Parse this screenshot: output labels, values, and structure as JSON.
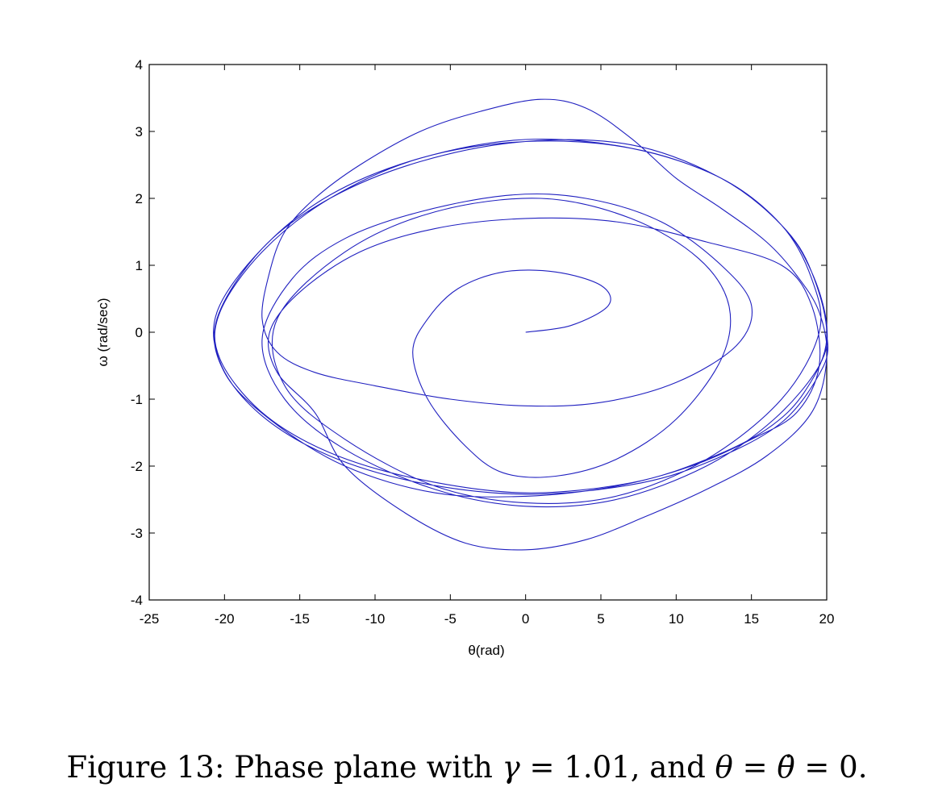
{
  "chart_data": {
    "type": "line",
    "title": "",
    "xlabel": "θ(rad)",
    "ylabel": "ω (rad/sec)",
    "xlim": [
      -25,
      20
    ],
    "ylim": [
      -4,
      4
    ],
    "xticks": [
      -25,
      -20,
      -15,
      -10,
      -5,
      0,
      5,
      10,
      15,
      20
    ],
    "yticks": [
      -4,
      -3,
      -2,
      -1,
      0,
      1,
      2,
      3,
      4
    ],
    "xtick_labels": [
      "-25",
      "-20",
      "-15",
      "-10",
      "-5",
      "0",
      "5",
      "10",
      "15",
      "20"
    ],
    "ytick_labels": [
      "-4",
      "-3",
      "-2",
      "-1",
      "0",
      "1",
      "2",
      "3",
      "4"
    ],
    "grid": false,
    "line_color": "#2020c0",
    "series": [
      {
        "points": [
          [
            0,
            0
          ],
          [
            3,
            0.1
          ],
          [
            5.5,
            0.4
          ],
          [
            5,
            0.7
          ],
          [
            2,
            0.9
          ],
          [
            -1.5,
            0.9
          ],
          [
            -4.5,
            0.65
          ],
          [
            -6.5,
            0.2
          ],
          [
            -7.5,
            -0.3
          ],
          [
            -6.5,
            -1.0
          ],
          [
            -4,
            -1.7
          ],
          [
            -1.5,
            -2.1
          ],
          [
            2,
            -2.15
          ],
          [
            6,
            -1.9
          ],
          [
            10,
            -1.3
          ],
          [
            13,
            -0.4
          ],
          [
            13.5,
            0.4
          ],
          [
            11.5,
            1.1
          ],
          [
            7,
            1.7
          ],
          [
            1,
            2.0
          ],
          [
            -6,
            1.8
          ],
          [
            -12,
            1.2
          ],
          [
            -16.5,
            0.2
          ],
          [
            -16,
            -0.8
          ],
          [
            -12,
            -1.6
          ],
          [
            -6,
            -2.3
          ],
          [
            0,
            -2.55
          ],
          [
            6,
            -2.45
          ],
          [
            12,
            -1.9
          ],
          [
            17,
            -1.0
          ],
          [
            19.5,
            0
          ],
          [
            19,
            0.8
          ],
          [
            17,
            1.6
          ],
          [
            13,
            2.3
          ],
          [
            7,
            2.75
          ],
          [
            0,
            2.85
          ],
          [
            -7,
            2.6
          ],
          [
            -13,
            2.0
          ],
          [
            -17.5,
            1.2
          ],
          [
            -20.3,
            0.3
          ],
          [
            -20.3,
            -0.4
          ],
          [
            -17.5,
            -1.2
          ],
          [
            -13,
            -1.8
          ],
          [
            -7,
            -2.2
          ],
          [
            0,
            -2.4
          ],
          [
            7,
            -2.25
          ],
          [
            12,
            -1.9
          ],
          [
            16,
            -1.45
          ],
          [
            18.5,
            -0.9
          ],
          [
            20,
            -0.1
          ],
          [
            19,
            0.9
          ],
          [
            17,
            1.6
          ],
          [
            13,
            2.3
          ],
          [
            7,
            2.8
          ],
          [
            0,
            2.85
          ],
          [
            -7,
            2.55
          ],
          [
            -13,
            2.0
          ],
          [
            -17.5,
            1.25
          ],
          [
            -20.5,
            0.2
          ],
          [
            -20,
            -0.6
          ],
          [
            -17,
            -1.3
          ],
          [
            -12,
            -2.0
          ],
          [
            -6,
            -2.4
          ],
          [
            0,
            -2.45
          ],
          [
            6,
            -2.3
          ],
          [
            11,
            -2.0
          ],
          [
            15,
            -1.6
          ],
          [
            18,
            -1.2
          ],
          [
            19.5,
            -0.5
          ],
          [
            19,
            0.4
          ],
          [
            17,
            1.0
          ],
          [
            12,
            1.35
          ],
          [
            6,
            1.65
          ],
          [
            0,
            1.7
          ],
          [
            -6,
            1.55
          ],
          [
            -11,
            1.2
          ],
          [
            -15,
            0.6
          ],
          [
            -17,
            0.0
          ],
          [
            -16.5,
            -0.6
          ],
          [
            -14,
            -1.2
          ],
          [
            -12,
            -2.0
          ],
          [
            -8,
            -2.7
          ],
          [
            -4,
            -3.15
          ],
          [
            0,
            -3.25
          ],
          [
            4,
            -3.1
          ],
          [
            8,
            -2.75
          ],
          [
            12,
            -2.35
          ],
          [
            16,
            -1.85
          ],
          [
            19,
            -1.2
          ],
          [
            20,
            -0.4
          ],
          [
            19.5,
            0.3
          ],
          [
            18,
            0.85
          ],
          [
            16,
            1.35
          ],
          [
            13,
            1.85
          ],
          [
            10,
            2.3
          ],
          [
            7,
            2.9
          ],
          [
            4,
            3.35
          ],
          [
            1,
            3.48
          ],
          [
            -3,
            3.3
          ],
          [
            -7,
            3.0
          ],
          [
            -11,
            2.5
          ],
          [
            -14,
            2.0
          ],
          [
            -16,
            1.5
          ],
          [
            -17,
            0.9
          ],
          [
            -17.5,
            0.2
          ],
          [
            -16.5,
            -0.3
          ],
          [
            -14,
            -0.6
          ],
          [
            -10,
            -0.8
          ],
          [
            -5,
            -1.0
          ],
          [
            0,
            -1.1
          ],
          [
            5,
            -1.05
          ],
          [
            10,
            -0.75
          ],
          [
            14,
            -0.2
          ],
          [
            15,
            0.4
          ],
          [
            13,
            1.0
          ],
          [
            9,
            1.65
          ],
          [
            4,
            2.0
          ],
          [
            -1,
            2.05
          ],
          [
            -7,
            1.8
          ],
          [
            -12,
            1.4
          ],
          [
            -15.5,
            0.8
          ],
          [
            -17.5,
            -0.1
          ],
          [
            -16,
            -1.0
          ],
          [
            -12,
            -1.75
          ],
          [
            -6,
            -2.35
          ],
          [
            0,
            -2.6
          ],
          [
            6,
            -2.5
          ],
          [
            12,
            -2.0
          ],
          [
            16.5,
            -1.3
          ],
          [
            19.5,
            -0.5
          ],
          [
            20,
            0.1
          ],
          [
            19,
            0.9
          ],
          [
            17,
            1.6
          ],
          [
            13,
            2.3
          ],
          [
            7,
            2.75
          ],
          [
            0,
            2.88
          ],
          [
            -7,
            2.6
          ],
          [
            -13,
            2.05
          ],
          [
            -17.5,
            1.25
          ],
          [
            -20.5,
            0.3
          ],
          [
            -20.2,
            -0.5
          ],
          [
            -17.5,
            -1.25
          ],
          [
            -13,
            -1.85
          ],
          [
            -7,
            -2.25
          ],
          [
            0,
            -2.42
          ],
          [
            7,
            -2.28
          ],
          [
            12,
            -1.95
          ],
          [
            17,
            -1.35
          ],
          [
            19.8,
            -0.5
          ],
          [
            20,
            0
          ]
        ]
      }
    ]
  },
  "caption": {
    "prefix": "Figure 13: Phase plane with ",
    "gamma_symbol": "γ",
    "gamma_eq": " = 1.01, and ",
    "theta_symbol": "θ",
    "theta_eq": " = ",
    "theta_dot": "θ̇",
    "final": " = 0."
  }
}
